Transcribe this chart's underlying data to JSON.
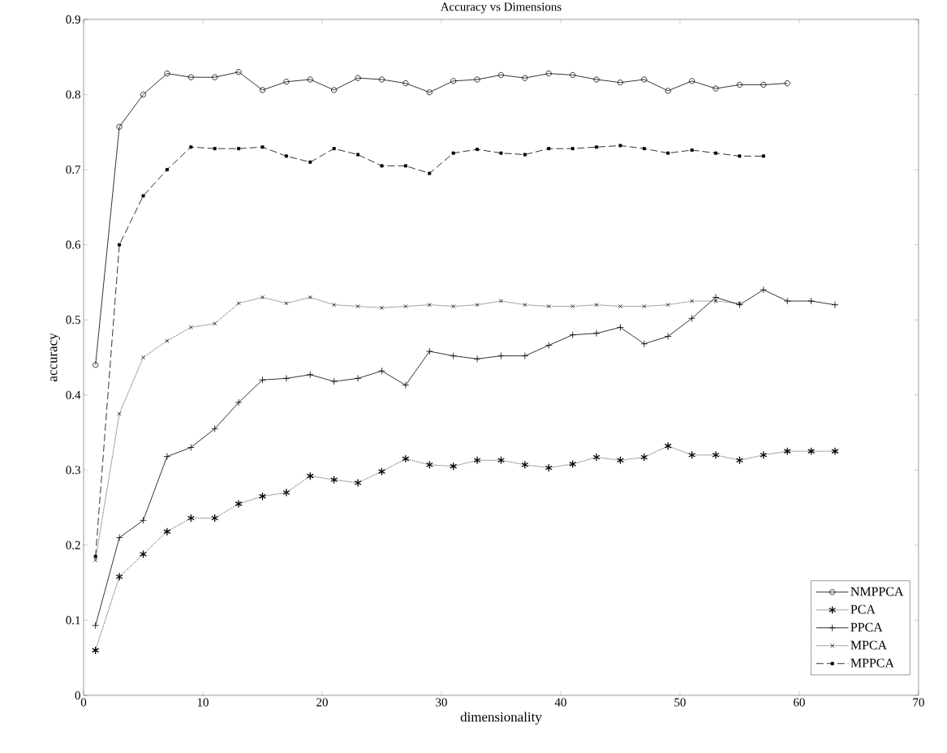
{
  "chart_data": {
    "type": "line",
    "title": "Accuracy vs Dimensions",
    "xlabel": "dimensionality",
    "ylabel": "accuracy",
    "xlim": [
      0,
      70
    ],
    "xticks": [
      0,
      10,
      20,
      30,
      40,
      50,
      60,
      70
    ],
    "ylim": [
      0,
      0.9
    ],
    "yticks": [
      0,
      0.1,
      0.2,
      0.3,
      0.4,
      0.5,
      0.6,
      0.7,
      0.8,
      0.9
    ],
    "grid": false,
    "legend": "bottom right",
    "series": [
      {
        "name": "NMPPCA",
        "color": "#000000",
        "marker": "circle",
        "line_style": "solid",
        "x": [
          1,
          3,
          5,
          7,
          9,
          11,
          13,
          15,
          17,
          19,
          21,
          23,
          25,
          27,
          29,
          31,
          33,
          35,
          37,
          39,
          41,
          43,
          45,
          47,
          49,
          51,
          53,
          55,
          57,
          59
        ],
        "values": [
          0.44,
          0.757,
          0.8,
          0.828,
          0.823,
          0.823,
          0.83,
          0.806,
          0.817,
          0.82,
          0.806,
          0.822,
          0.82,
          0.815,
          0.803,
          0.818,
          0.82,
          0.826,
          0.822,
          0.828,
          0.826,
          0.82,
          0.816,
          0.82,
          0.805,
          0.818,
          0.808,
          0.813,
          0.813,
          0.815
        ]
      },
      {
        "name": "PCA",
        "color": "#000000",
        "marker": "cross",
        "line_style": "dotted",
        "x": [
          1,
          3,
          5,
          7,
          9,
          11,
          13,
          15,
          17,
          19,
          21,
          23,
          25,
          27,
          29,
          31,
          33,
          35,
          37,
          39,
          41,
          43,
          45,
          47,
          49,
          51,
          53,
          55,
          57,
          59,
          61,
          63
        ],
        "values": [
          0.06,
          0.158,
          0.188,
          0.218,
          0.236,
          0.236,
          0.255,
          0.265,
          0.27,
          0.292,
          0.287,
          0.283,
          0.298,
          0.315,
          0.307,
          0.305,
          0.313,
          0.313,
          0.307,
          0.303,
          0.308,
          0.317,
          0.313,
          0.317,
          0.332,
          0.32,
          0.32,
          0.313,
          0.32,
          0.325,
          0.325,
          0.325
        ]
      },
      {
        "name": "PPCA",
        "color": "#000000",
        "marker": "plus",
        "line_style": "solid",
        "x": [
          1,
          3,
          5,
          7,
          9,
          11,
          13,
          15,
          17,
          19,
          21,
          23,
          25,
          27,
          29,
          31,
          33,
          35,
          37,
          39,
          41,
          43,
          45,
          47,
          49,
          51,
          53,
          55,
          57,
          59,
          61,
          63
        ],
        "values": [
          0.093,
          0.21,
          0.233,
          0.318,
          0.33,
          0.355,
          0.39,
          0.42,
          0.422,
          0.427,
          0.418,
          0.422,
          0.432,
          0.413,
          0.458,
          0.452,
          0.448,
          0.452,
          0.452,
          0.466,
          0.48,
          0.482,
          0.49,
          0.468,
          0.478,
          0.502,
          0.53,
          0.52,
          0.54,
          0.525,
          0.525,
          0.52
        ]
      },
      {
        "name": "MPCA",
        "color": "#000000",
        "marker": "cross",
        "line_style": "dotted",
        "x": [
          1,
          3,
          5,
          7,
          9,
          11,
          13,
          15,
          17,
          19,
          21,
          23,
          25,
          27,
          29,
          31,
          33,
          35,
          37,
          39,
          41,
          43,
          45,
          47,
          49,
          51,
          53,
          55
        ],
        "values": [
          0.18,
          0.375,
          0.45,
          0.472,
          0.49,
          0.495,
          0.522,
          0.53,
          0.522,
          0.53,
          0.52,
          0.518,
          0.516,
          0.518,
          0.52,
          0.518,
          0.52,
          0.525,
          0.52,
          0.518,
          0.518,
          0.52,
          0.518,
          0.518,
          0.52,
          0.525,
          0.525,
          0.522
        ]
      },
      {
        "name": "MPPCA",
        "color": "#000000",
        "marker": "square",
        "line_style": "dashed",
        "x": [
          1,
          3,
          5,
          7,
          9,
          11,
          13,
          15,
          17,
          19,
          21,
          23,
          25,
          27,
          29,
          31,
          33,
          35,
          37,
          39,
          41,
          43,
          45,
          47,
          49,
          51,
          53,
          55,
          57
        ],
        "values": [
          0.185,
          0.6,
          0.665,
          0.7,
          0.73,
          0.728,
          0.728,
          0.73,
          0.718,
          0.71,
          0.728,
          0.72,
          0.705,
          0.705,
          0.695,
          0.722,
          0.727,
          0.722,
          0.72,
          0.728,
          0.728,
          0.73,
          0.732,
          0.728,
          0.722,
          0.726,
          0.722,
          0.718,
          0.718
        ]
      }
    ]
  }
}
